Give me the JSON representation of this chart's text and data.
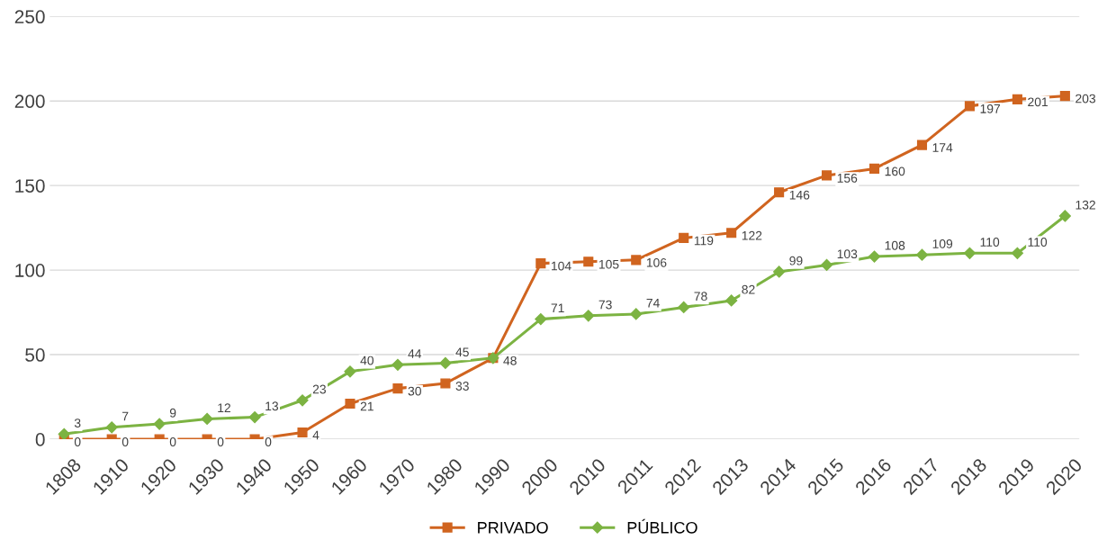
{
  "chart_data": {
    "type": "line",
    "categories": [
      "1808",
      "1910",
      "1920",
      "1930",
      "1940",
      "1950",
      "1960",
      "1970",
      "1980",
      "1990",
      "2000",
      "2010",
      "2011",
      "2012",
      "2013",
      "2014",
      "2015",
      "2016",
      "2017",
      "2018",
      "2019",
      "2020"
    ],
    "series": [
      {
        "name": "PRIVADO",
        "color": "#d0641f",
        "marker": "square",
        "values": [
          0,
          0,
          0,
          0,
          0,
          4,
          21,
          30,
          33,
          48,
          104,
          105,
          106,
          119,
          122,
          146,
          156,
          160,
          174,
          197,
          201,
          203
        ],
        "value_labels": [
          "0",
          "0",
          "0",
          "0",
          "0",
          "4",
          "21",
          "30",
          "33",
          "48",
          "104",
          "105",
          "106",
          "119",
          "122",
          "146",
          "156",
          "160",
          "174",
          "197",
          "201",
          "203"
        ]
      },
      {
        "name": "PÚBLICO",
        "color": "#7cb342",
        "marker": "diamond",
        "values": [
          3,
          7,
          9,
          12,
          13,
          23,
          40,
          44,
          45,
          48,
          71,
          73,
          74,
          78,
          82,
          99,
          103,
          108,
          109,
          110,
          110,
          132
        ],
        "value_labels": [
          "3",
          "7",
          "9",
          "12",
          "13",
          "23",
          "40",
          "44",
          "45",
          null,
          "71",
          "73",
          "74",
          "78",
          "82",
          "99",
          "103",
          "108",
          "109",
          "110",
          "110",
          "132"
        ]
      }
    ],
    "ylim": [
      0,
      250
    ],
    "yticks": [
      0,
      50,
      100,
      150,
      200,
      250
    ],
    "grid": "y",
    "legend": "bottom",
    "line_style": "solid"
  }
}
